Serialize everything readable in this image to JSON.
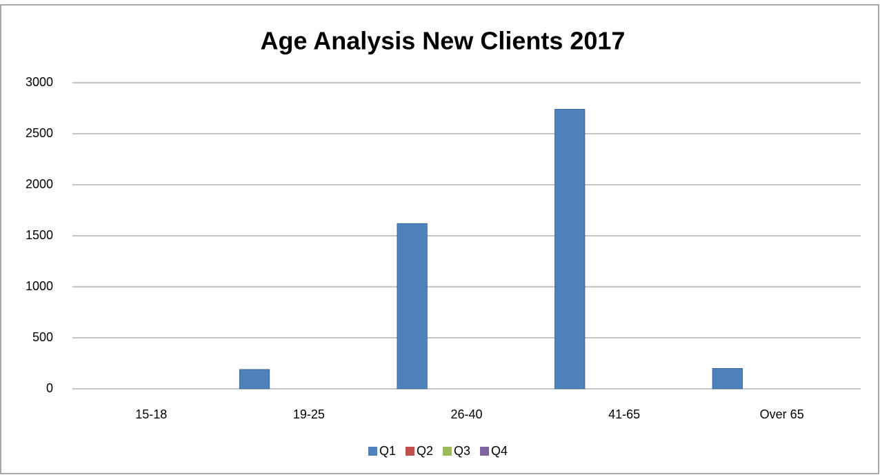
{
  "chart_data": {
    "type": "bar",
    "title": "Age Analysis New Clients 2017",
    "categories": [
      "15-18",
      "19-25",
      "26-40",
      "41-65",
      "Over 65"
    ],
    "series": [
      {
        "name": "Q1",
        "color": "#4f81bd",
        "values": [
          0,
          190,
          1620,
          2740,
          200
        ]
      },
      {
        "name": "Q2",
        "color": "#c0504d",
        "values": [
          0,
          0,
          0,
          0,
          0
        ]
      },
      {
        "name": "Q3",
        "color": "#9bbb59",
        "values": [
          0,
          0,
          0,
          0,
          0
        ]
      },
      {
        "name": "Q4",
        "color": "#8064a2",
        "values": [
          0,
          0,
          0,
          0,
          0
        ]
      }
    ],
    "ylim": [
      0,
      3000
    ],
    "yticks": [
      0,
      500,
      1000,
      1500,
      2000,
      2500,
      3000
    ],
    "grid": true,
    "legend": "bottom"
  }
}
